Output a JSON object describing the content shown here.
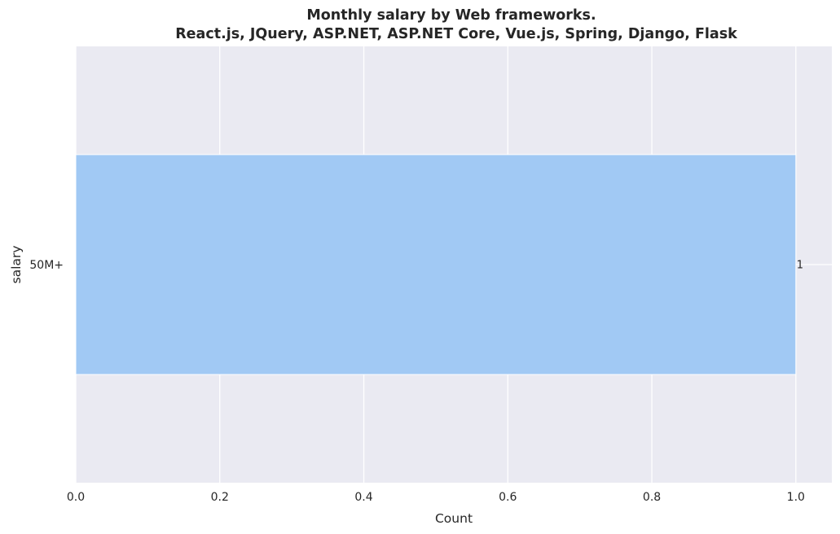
{
  "chart_data": {
    "type": "bar",
    "orientation": "horizontal",
    "title": "Monthly salary by Web frameworks.",
    "subtitle": "React.js, JQuery, ASP.NET, ASP.NET Core, Vue.js, Spring, Django, Flask",
    "xlabel": "Count",
    "ylabel": "salary",
    "categories": [
      "50M+"
    ],
    "values": [
      1
    ],
    "data_labels": [
      "1"
    ],
    "xlim": [
      0,
      1.05
    ],
    "xticks": [
      0.0,
      0.2,
      0.4,
      0.6,
      0.8,
      1.0
    ],
    "xtick_labels": [
      "0.0",
      "0.2",
      "0.4",
      "0.6",
      "0.8",
      "1.0"
    ],
    "grid": true,
    "colors": {
      "bar": "#a1c9f4",
      "plot_background": "#eaeaf2",
      "grid": "#ffffff",
      "text": "#262626"
    }
  }
}
